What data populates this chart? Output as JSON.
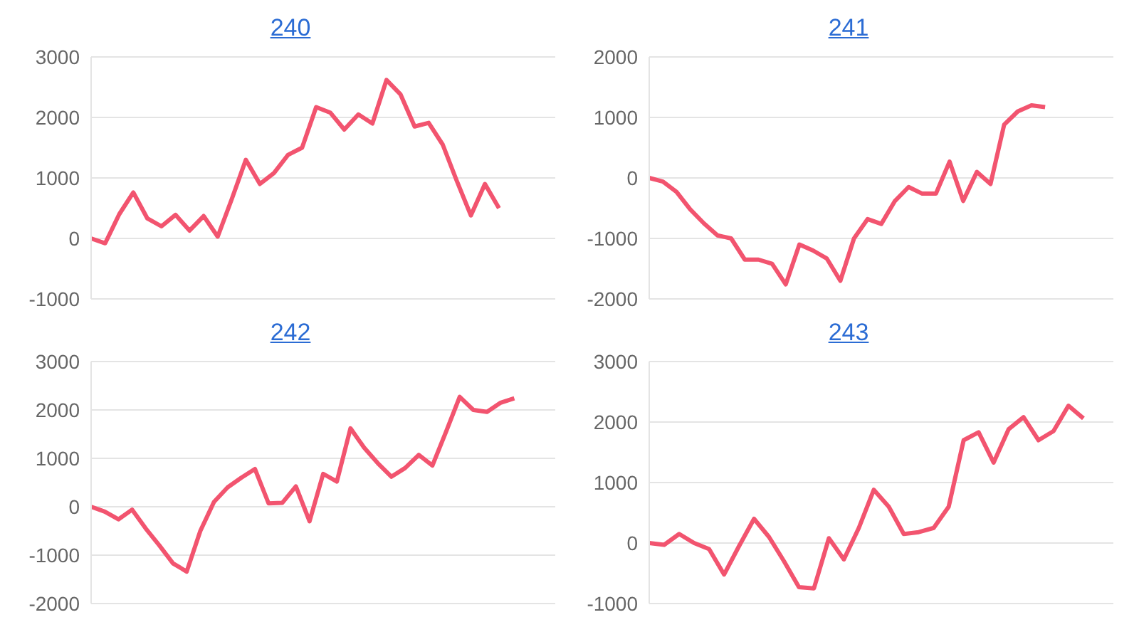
{
  "chart_data": [
    {
      "type": "line",
      "title": "240",
      "categories": [
        null,
        null,
        null,
        null,
        null,
        null,
        null,
        null,
        null,
        null,
        null,
        null,
        null,
        null,
        null,
        null,
        null,
        null,
        null,
        null,
        null,
        null,
        null,
        null,
        null,
        null,
        null,
        null,
        null,
        null,
        null,
        null,
        null,
        null
      ],
      "series": [
        {
          "color": "#f2546f",
          "values": [
            0,
            -80,
            400,
            760,
            330,
            200,
            390,
            130,
            370,
            30,
            650,
            1300,
            900,
            1080,
            1380,
            1500,
            2170,
            2080,
            1800,
            2050,
            1900,
            2620,
            2380,
            1850,
            1910,
            1550,
            950,
            380,
            900,
            500,
            null,
            null,
            null,
            null
          ]
        }
      ],
      "ylim": [
        -1000,
        3000
      ],
      "yticks": [
        -1000,
        0,
        1000,
        2000,
        3000
      ],
      "grid": "y",
      "tick_labels": "y",
      "marker": "none"
    },
    {
      "type": "line",
      "title": "241",
      "categories": [
        null,
        null,
        null,
        null,
        null,
        null,
        null,
        null,
        null,
        null,
        null,
        null,
        null,
        null,
        null,
        null,
        null,
        null,
        null,
        null,
        null,
        null,
        null,
        null,
        null,
        null,
        null,
        null,
        null,
        null,
        null,
        null,
        null,
        null,
        null
      ],
      "series": [
        {
          "color": "#f2546f",
          "values": [
            0,
            -60,
            -230,
            -520,
            -750,
            -950,
            -1000,
            -1350,
            -1350,
            -1420,
            -1760,
            -1100,
            -1200,
            -1330,
            -1700,
            -1000,
            -680,
            -760,
            -380,
            -150,
            -260,
            -260,
            270,
            -380,
            100,
            -100,
            880,
            1100,
            1200,
            1170,
            null,
            null,
            null,
            null,
            null
          ]
        }
      ],
      "ylim": [
        -2000,
        2000
      ],
      "yticks": [
        -2000,
        -1000,
        0,
        1000,
        2000
      ],
      "grid": "y",
      "tick_labels": "y",
      "marker": "none"
    },
    {
      "type": "line",
      "title": "242",
      "categories": [
        null,
        null,
        null,
        null,
        null,
        null,
        null,
        null,
        null,
        null,
        null,
        null,
        null,
        null,
        null,
        null,
        null,
        null,
        null,
        null,
        null,
        null,
        null,
        null,
        null,
        null,
        null,
        null,
        null,
        null,
        null,
        null,
        null,
        null,
        null
      ],
      "series": [
        {
          "color": "#f2546f",
          "values": [
            0,
            -100,
            -260,
            -60,
            -450,
            -800,
            -1170,
            -1340,
            -500,
            100,
            400,
            600,
            780,
            70,
            80,
            420,
            -300,
            680,
            520,
            1620,
            1220,
            900,
            620,
            800,
            1070,
            850,
            1550,
            2270,
            2000,
            1960,
            2150,
            2240,
            null,
            null,
            null
          ]
        }
      ],
      "ylim": [
        -2000,
        3000
      ],
      "yticks": [
        -2000,
        -1000,
        0,
        1000,
        2000,
        3000
      ],
      "grid": "y",
      "tick_labels": "y",
      "marker": "none"
    },
    {
      "type": "line",
      "title": "243",
      "categories": [
        null,
        null,
        null,
        null,
        null,
        null,
        null,
        null,
        null,
        null,
        null,
        null,
        null,
        null,
        null,
        null,
        null,
        null,
        null,
        null,
        null,
        null,
        null,
        null,
        null,
        null,
        null,
        null,
        null,
        null,
        null,
        null
      ],
      "series": [
        {
          "color": "#f2546f",
          "values": [
            0,
            -30,
            150,
            0,
            -100,
            -520,
            -50,
            400,
            100,
            -300,
            -730,
            -750,
            80,
            -270,
            250,
            880,
            600,
            150,
            180,
            250,
            600,
            1700,
            1830,
            1330,
            1880,
            2080,
            1700,
            1850,
            2270,
            2060,
            null,
            null
          ]
        }
      ],
      "ylim": [
        -1000,
        3000
      ],
      "yticks": [
        -1000,
        0,
        1000,
        2000,
        3000
      ],
      "grid": "y",
      "tick_labels": "y",
      "marker": "none"
    }
  ]
}
